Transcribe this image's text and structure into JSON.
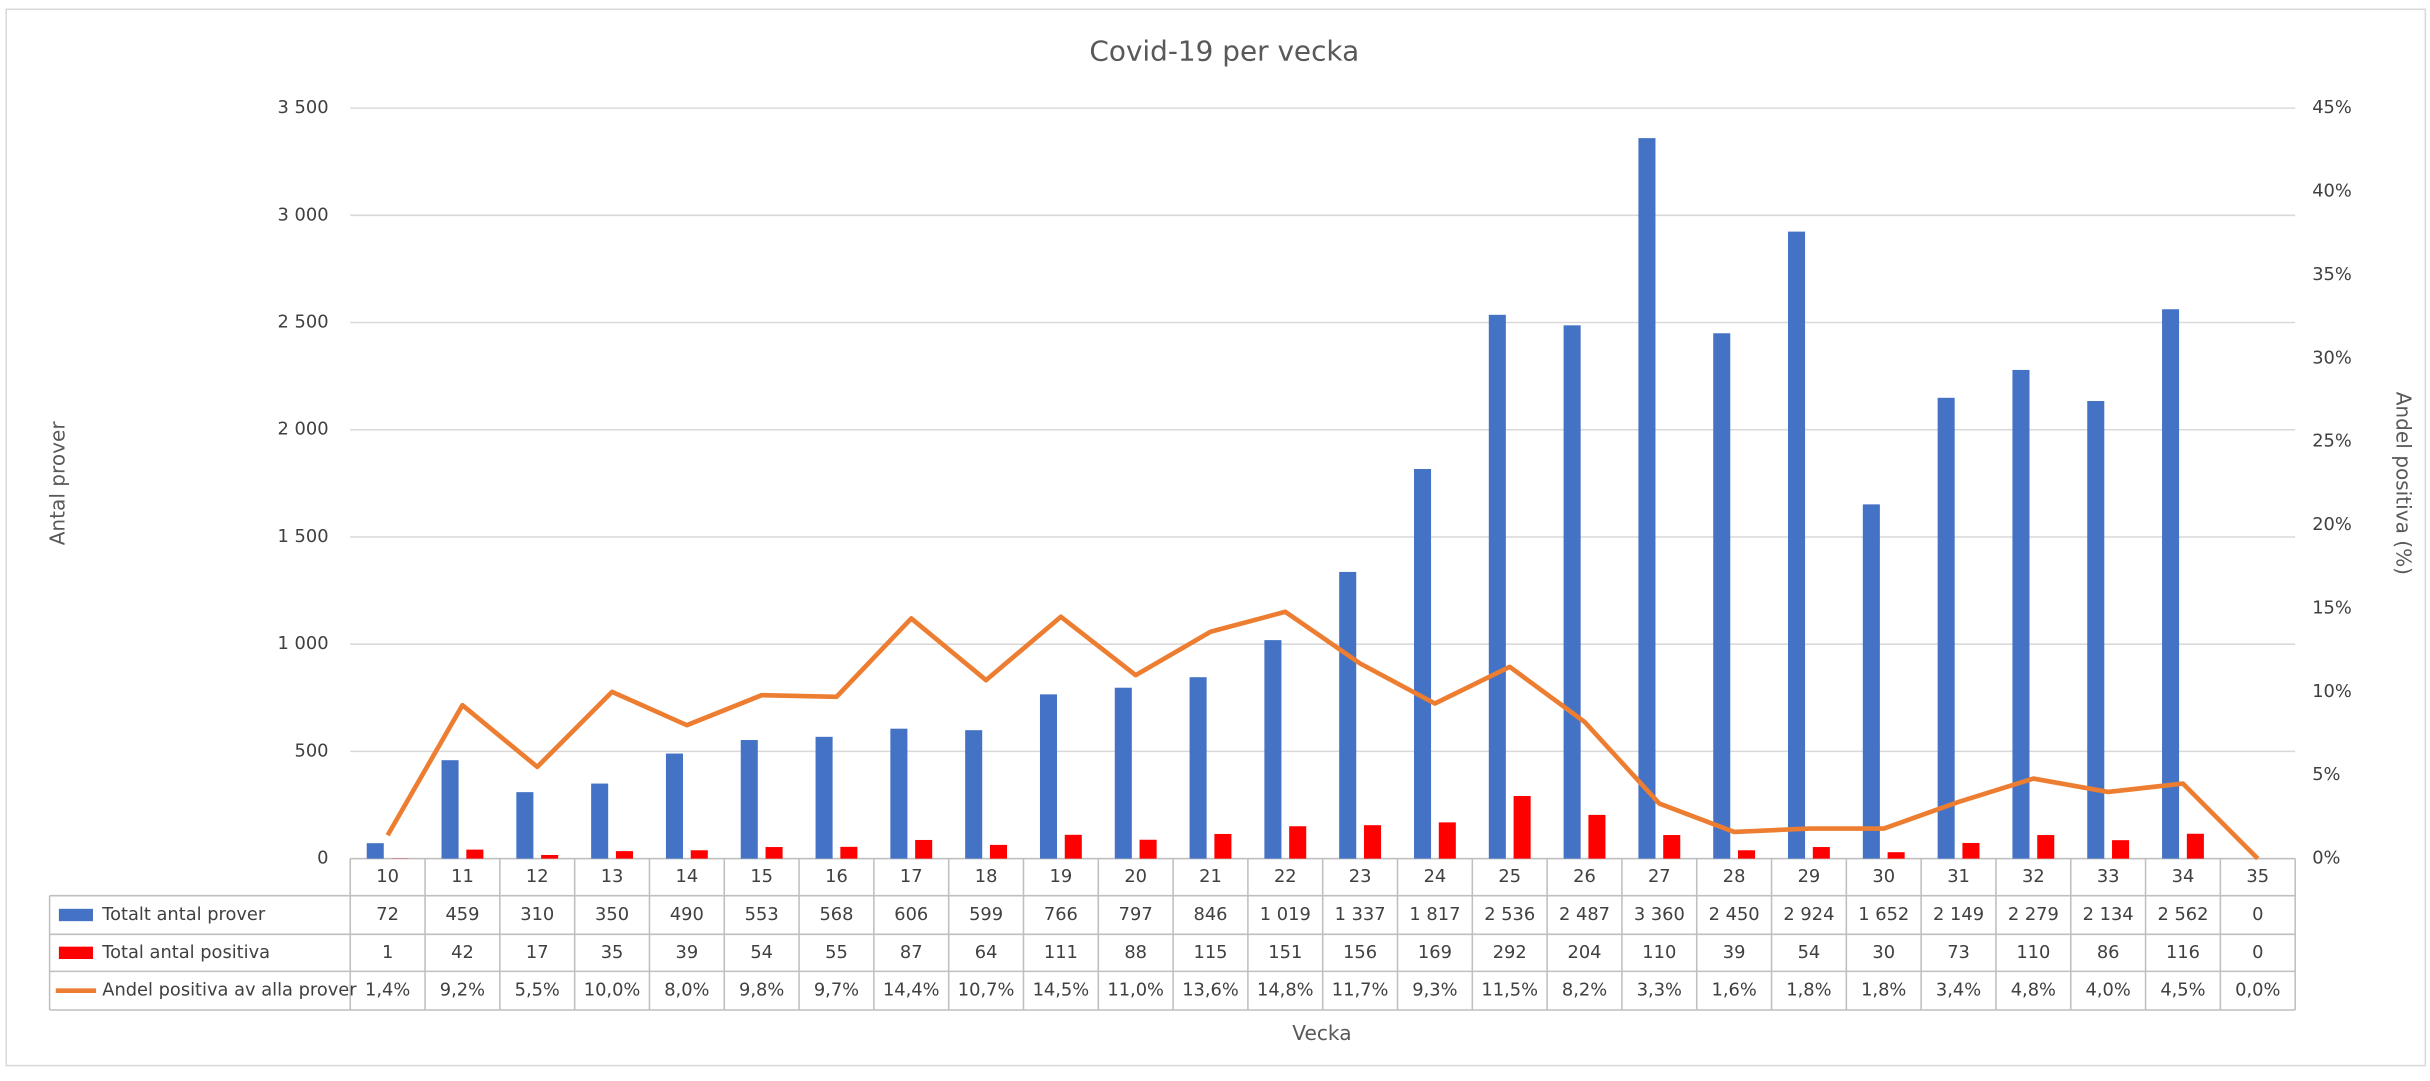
{
  "chart_data": {
    "type": "bar",
    "title": "Covid-19 per vecka",
    "x_label": "Vecka",
    "y_label": "Antal prover",
    "y2_label": "Andel positiva (%)",
    "categories": [
      "10",
      "11",
      "12",
      "13",
      "14",
      "15",
      "16",
      "17",
      "18",
      "19",
      "20",
      "21",
      "22",
      "23",
      "24",
      "25",
      "26",
      "27",
      "28",
      "29",
      "30",
      "31",
      "32",
      "33",
      "34",
      "35"
    ],
    "series": [
      {
        "name": "Totalt antal prover",
        "type": "bar",
        "color": "#4472c4",
        "values": [
          72,
          459,
          310,
          350,
          490,
          553,
          568,
          606,
          599,
          766,
          797,
          846,
          1019,
          1337,
          1817,
          2536,
          2487,
          3360,
          2450,
          2924,
          1652,
          2149,
          2279,
          2134,
          2562,
          0
        ],
        "value_labels": [
          "72",
          "459",
          "310",
          "350",
          "490",
          "553",
          "568",
          "606",
          "599",
          "766",
          "797",
          "846",
          "1 019",
          "1 337",
          "1 817",
          "2 536",
          "2 487",
          "3 360",
          "2 450",
          "2 924",
          "1 652",
          "2 149",
          "2 279",
          "2 134",
          "2 562",
          "0"
        ]
      },
      {
        "name": "Total antal positiva",
        "type": "bar",
        "color": "#ff0000",
        "values": [
          1,
          42,
          17,
          35,
          39,
          54,
          55,
          87,
          64,
          111,
          88,
          115,
          151,
          156,
          169,
          292,
          204,
          110,
          39,
          54,
          30,
          73,
          110,
          86,
          116,
          0
        ]
      },
      {
        "name": "Andel positiva av alla prover",
        "type": "line",
        "axis": "y2",
        "color": "#ed7d31",
        "values": [
          1.4,
          9.2,
          5.5,
          10.0,
          8.0,
          9.8,
          9.7,
          14.4,
          10.7,
          14.5,
          11.0,
          13.6,
          14.8,
          11.7,
          9.3,
          11.5,
          8.2,
          3.3,
          1.6,
          1.8,
          1.8,
          3.4,
          4.8,
          4.0,
          4.5,
          0.0
        ],
        "value_labels": [
          "1,4%",
          "9,2%",
          "5,5%",
          "10,0%",
          "8,0%",
          "9,8%",
          "9,7%",
          "14,4%",
          "10,7%",
          "14,5%",
          "11,0%",
          "13,6%",
          "14,8%",
          "11,7%",
          "9,3%",
          "11,5%",
          "8,2%",
          "3,3%",
          "1,6%",
          "1,8%",
          "1,8%",
          "3,4%",
          "4,8%",
          "4,0%",
          "4,5%",
          "0,0%"
        ]
      }
    ],
    "ylim": [
      0,
      3500
    ],
    "yticks": [
      0,
      500,
      {
        "value": 1000,
        "label": "1 000"
      },
      {
        "value": 1500,
        "label": "1 500"
      },
      {
        "value": 2000,
        "label": "2 000"
      },
      {
        "value": 2500,
        "label": "2 500"
      },
      {
        "value": 3000,
        "label": "3 000"
      },
      {
        "value": 3500,
        "label": "3 500"
      }
    ],
    "y2lim": [
      0,
      45
    ],
    "y2ticks": [
      {
        "value": 0,
        "label": "0%"
      },
      {
        "value": 5,
        "label": "5%"
      },
      {
        "value": 10,
        "label": "10%"
      },
      {
        "value": 15,
        "label": "15%"
      },
      {
        "value": 20,
        "label": "20%"
      },
      {
        "value": 25,
        "label": "25%"
      },
      {
        "value": 30,
        "label": "30%"
      },
      {
        "value": 35,
        "label": "35%"
      },
      {
        "value": 40,
        "label": "40%"
      },
      {
        "value": 45,
        "label": "45%"
      }
    ],
    "grid": true
  }
}
